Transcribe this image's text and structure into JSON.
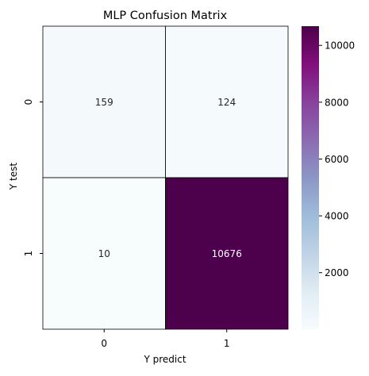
{
  "chart_data": {
    "type": "heatmap",
    "title": "MLP Confusion Matrix",
    "xlabel": "Y predict",
    "ylabel": "Y test",
    "x_categories": [
      "0",
      "1"
    ],
    "y_categories": [
      "0",
      "1"
    ],
    "matrix": [
      [
        159,
        124
      ],
      [
        10,
        10676
      ]
    ],
    "cell_labels": [
      [
        "159",
        "124"
      ],
      [
        "10",
        "10676"
      ]
    ],
    "colormap": "BuPu",
    "colorbar": {
      "vmin": 10,
      "vmax": 10676,
      "ticks": [
        "2000",
        "4000",
        "6000",
        "8000",
        "10000"
      ]
    },
    "cell_border_color": "#000000",
    "grid": false,
    "legend": "colorbar-right"
  }
}
